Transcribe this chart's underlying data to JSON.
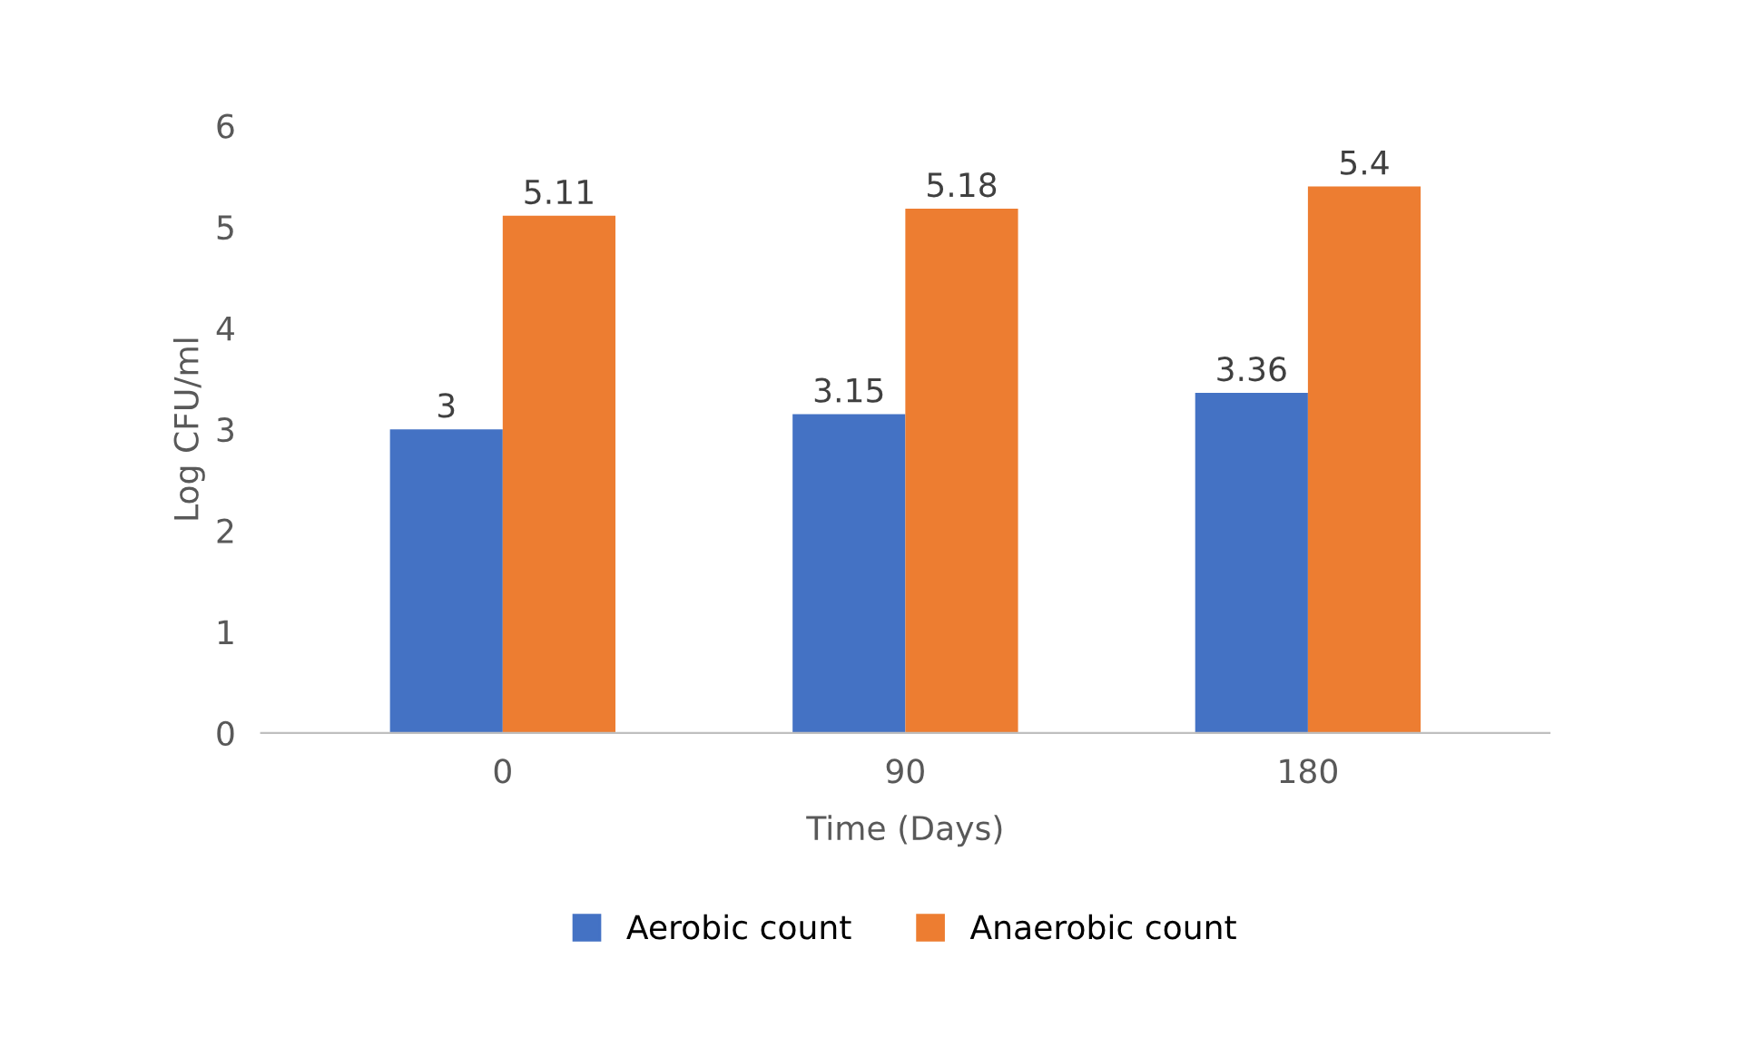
{
  "chart_data": {
    "type": "bar",
    "xlabel": "Time (Days)",
    "ylabel": "Log CFU/ml",
    "categories": [
      "0",
      "90",
      "180"
    ],
    "series": [
      {
        "name": "Aerobic count",
        "color": "#4472c4",
        "values": [
          3,
          3.15,
          3.36
        ]
      },
      {
        "name": "Anaerobic count",
        "color": "#ed7d31",
        "values": [
          5.11,
          5.18,
          5.4
        ]
      }
    ],
    "ylim": [
      0,
      6
    ],
    "yticks": [
      0,
      1,
      2,
      3,
      4,
      5,
      6
    ],
    "grid": false,
    "legend": "bottom",
    "data_labels": true
  }
}
